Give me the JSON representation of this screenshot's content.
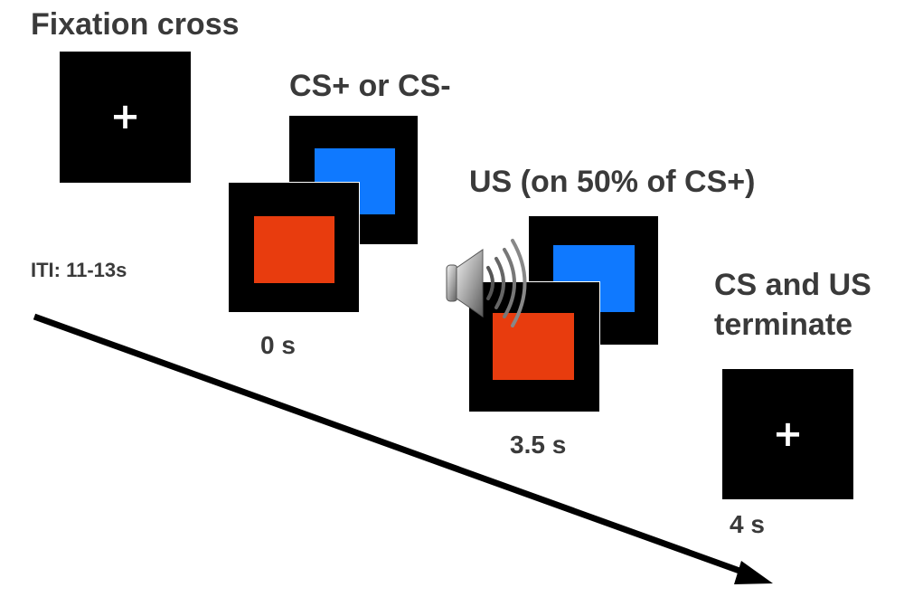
{
  "labels": {
    "fixation": "Fixation cross",
    "cs": "CS+ or CS-",
    "us": "US (on 50% of CS+)",
    "terminate_1": "CS and US",
    "terminate_2": "terminate",
    "iti": "ITI: 11-13s",
    "t0": "0 s",
    "t35": "3.5 s",
    "t4": "4 s"
  },
  "glyphs": {
    "plus": "+"
  },
  "colors": {
    "screen": "#000000",
    "cs_red": "#e83c0e",
    "cs_blue": "#0f79ff",
    "text": "#3a3a3a",
    "arrow": "#000000"
  },
  "icons": {
    "sound": "speaker-icon"
  }
}
